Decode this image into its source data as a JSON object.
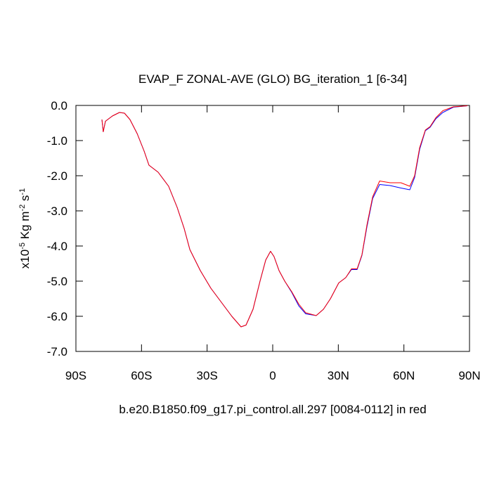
{
  "chart_data": {
    "type": "line",
    "title": "EVAP_F ZONAL-AVE (GLO) BG_iteration_1 [6-34]",
    "subtitle": "b.e20.B1850.f09_g17.pi_control.all.297 [0084-0112] in red",
    "ylabel": [
      {
        "text": "x10"
      },
      {
        "text": "-5",
        "sup": true
      },
      {
        "text": " Kg m"
      },
      {
        "text": "-2",
        "sup": true
      },
      {
        "text": " s"
      },
      {
        "text": "-1",
        "sup": true
      }
    ],
    "x": [
      -78.1,
      -77.5,
      -76.5,
      -73.3,
      -70.1,
      -67.8,
      -65.3,
      -62,
      -58.8,
      -56.6,
      -52.4,
      -47.6,
      -43.7,
      -40.5,
      -37.9,
      -33.1,
      -28.3,
      -23.5,
      -18.7,
      -14.5,
      -12.2,
      -9,
      -5.8,
      -3.2,
      -1,
      0.6,
      2.9,
      5.5,
      8.7,
      11.9,
      15.1,
      19.9,
      23.2,
      26.4,
      30.2,
      33.4,
      36,
      38.6,
      40.8,
      43.1,
      45.7,
      48.9,
      53.7,
      58.6,
      62.7,
      64.9,
      67.2,
      69.8,
      72,
      74.6,
      77.8,
      82.6,
      89
    ],
    "series": [
      {
        "color": "#0000ff",
        "values": [
          -0.4,
          -0.75,
          -0.45,
          -0.3,
          -0.2,
          -0.22,
          -0.4,
          -0.8,
          -1.3,
          -1.7,
          -1.9,
          -2.3,
          -2.9,
          -3.5,
          -4.1,
          -4.7,
          -5.2,
          -5.6,
          -6.0,
          -6.3,
          -6.25,
          -5.8,
          -5.0,
          -4.4,
          -4.15,
          -4.3,
          -4.7,
          -5.0,
          -5.32,
          -5.7,
          -5.93,
          -5.98,
          -5.8,
          -5.5,
          -5.05,
          -4.9,
          -4.67,
          -4.67,
          -4.27,
          -3.45,
          -2.65,
          -2.25,
          -2.28,
          -2.35,
          -2.4,
          -2.05,
          -1.25,
          -0.72,
          -0.62,
          -0.38,
          -0.2,
          -0.05,
          -0.01
        ]
      },
      {
        "color": "#ff0000",
        "values": [
          -0.4,
          -0.75,
          -0.45,
          -0.3,
          -0.2,
          -0.22,
          -0.4,
          -0.8,
          -1.3,
          -1.7,
          -1.9,
          -2.3,
          -2.9,
          -3.5,
          -4.1,
          -4.7,
          -5.2,
          -5.6,
          -6.0,
          -6.3,
          -6.25,
          -5.8,
          -5.0,
          -4.4,
          -4.15,
          -4.3,
          -4.7,
          -5.0,
          -5.3,
          -5.65,
          -5.9,
          -5.98,
          -5.8,
          -5.5,
          -5.05,
          -4.9,
          -4.65,
          -4.65,
          -4.25,
          -3.4,
          -2.6,
          -2.15,
          -2.2,
          -2.2,
          -2.3,
          -2.0,
          -1.2,
          -0.7,
          -0.6,
          -0.35,
          -0.15,
          -0.04,
          -0.01
        ]
      }
    ],
    "xlim": [
      -90,
      90
    ],
    "xticks": [
      {
        "value": -90,
        "label": "90S"
      },
      {
        "value": -60,
        "label": "60S"
      },
      {
        "value": -30,
        "label": "30S"
      },
      {
        "value": 0,
        "label": "0"
      },
      {
        "value": 30,
        "label": "30N"
      },
      {
        "value": 60,
        "label": "60N"
      },
      {
        "value": 90,
        "label": "90N"
      }
    ],
    "ylim": [
      -7,
      0
    ],
    "yticks": [
      {
        "value": 0,
        "label": "0.0"
      },
      {
        "value": -1,
        "label": "-1.0"
      },
      {
        "value": -2,
        "label": "-2.0"
      },
      {
        "value": -3,
        "label": "-3.0"
      },
      {
        "value": -4,
        "label": "-4.0"
      },
      {
        "value": -5,
        "label": "-5.0"
      },
      {
        "value": -6,
        "label": "-6.0"
      },
      {
        "value": -7,
        "label": "-7.0"
      }
    ]
  }
}
